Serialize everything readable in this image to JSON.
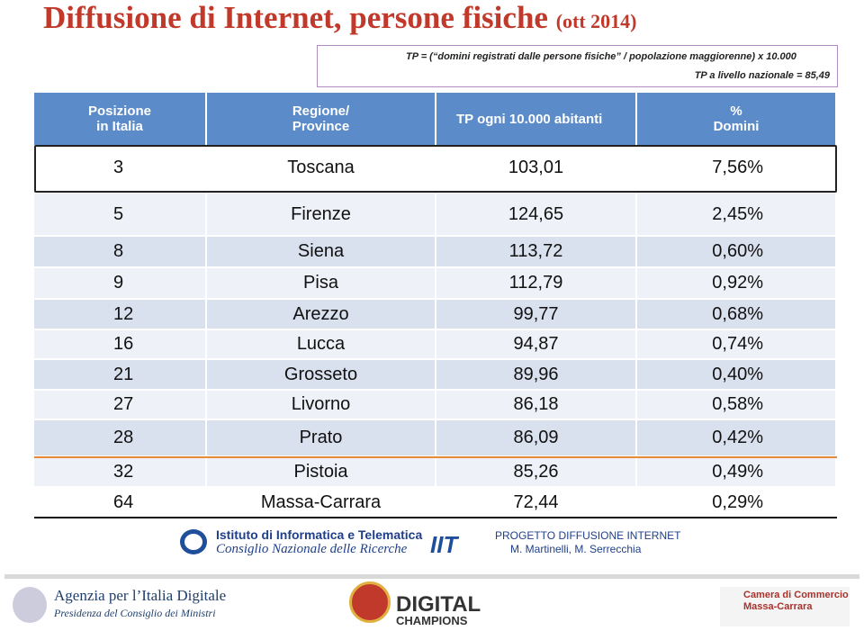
{
  "header": {
    "title": "Diffusione di Internet, persone fisiche",
    "date": "(ott 2014)"
  },
  "formula": {
    "line1": "TP = (“domini registrati dalle persone fisiche” / popolazione maggiorenne) x 10.000",
    "line2": "TP a livello nazionale =  85,49"
  },
  "table": {
    "columns": [
      [
        "Posizione",
        "in Italia"
      ],
      [
        "Regione/",
        "Province"
      ],
      [
        "TP ogni 10.000 abitanti"
      ],
      [
        "%",
        "Domini"
      ]
    ],
    "rows": [
      [
        "3",
        "Toscana",
        "103,01",
        "7,56%"
      ],
      [
        "5",
        "Firenze",
        "124,65",
        "2,45%"
      ],
      [
        "8",
        "Siena",
        "113,72",
        "0,60%"
      ],
      [
        "9",
        "Pisa",
        "112,79",
        "0,92%"
      ],
      [
        "12",
        "Arezzo",
        "99,77",
        "0,68%"
      ],
      [
        "16",
        "Lucca",
        "94,87",
        "0,74%"
      ],
      [
        "21",
        "Grosseto",
        "89,96",
        "0,40%"
      ],
      [
        "27",
        "Livorno",
        "86,18",
        "0,58%"
      ],
      [
        "28",
        "Prato",
        "86,09",
        "0,42%"
      ],
      [
        "32",
        "Pistoia",
        "85,26",
        "0,49%"
      ],
      [
        "64",
        "Massa-Carrara",
        "72,44",
        "0,29%"
      ]
    ]
  },
  "footer": {
    "iit_name": "Istituto di Informatica e Telematica",
    "cnr": "Consiglio Nazionale delle Ricerche",
    "project": "PROGETTO DIFFUSIONE INTERNET",
    "authors": "M. Martinelli, M. Serrecchia"
  },
  "logos": {
    "agid": "Agenzia per l’Italia Digitale",
    "presidenza": "Presidenza del Consiglio dei Ministri",
    "digital": "DIGITAL",
    "champions": "CHAMPIONS",
    "camera": "Camera di Commercio",
    "camera_city": "Massa-Carrara"
  }
}
